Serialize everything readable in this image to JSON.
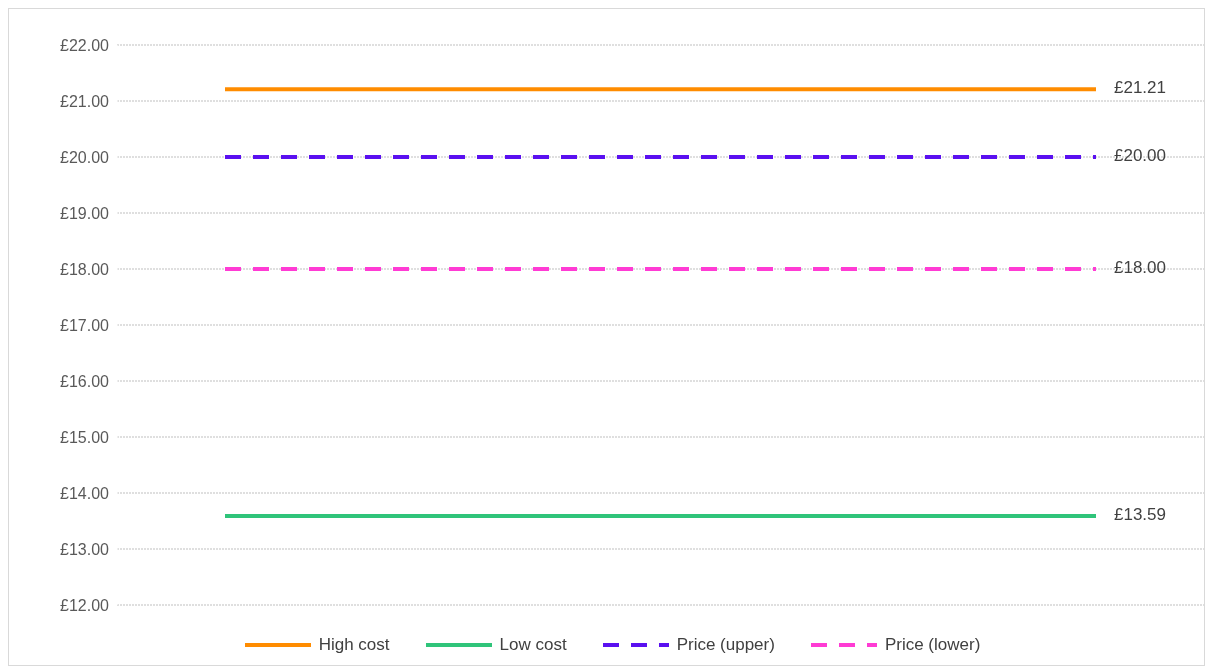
{
  "chart_data": {
    "type": "line",
    "categories": [
      null,
      null,
      null,
      null,
      null
    ],
    "series": [
      {
        "name": "High cost",
        "color": "#ff8c00",
        "values": [
          21.21,
          21.21,
          21.21,
          21.21,
          21.21
        ],
        "value_labels": [
          null,
          null,
          null,
          null,
          "£21.21"
        ],
        "line_style": "solid"
      },
      {
        "name": "Low cost",
        "color": "#2fc47a",
        "values": [
          13.59,
          13.59,
          13.59,
          13.59,
          13.59
        ],
        "value_labels": [
          null,
          null,
          null,
          null,
          "£13.59"
        ],
        "line_style": "solid"
      },
      {
        "name": "Price (upper)",
        "color": "#5a10f0",
        "values": [
          20,
          20,
          20,
          20,
          20
        ],
        "value_labels": [
          null,
          null,
          null,
          null,
          "£20.00"
        ],
        "line_style": "dashed"
      },
      {
        "name": "Price (lower)",
        "color": "#ff3bd4",
        "values": [
          18,
          18,
          18,
          18,
          18
        ],
        "value_labels": [
          null,
          null,
          null,
          null,
          "£18.00"
        ],
        "line_style": "dashed"
      }
    ],
    "ylim": [
      12,
      22
    ],
    "yticks": [
      {
        "value": 12,
        "label": "£12.00"
      },
      {
        "value": 13,
        "label": "£13.00"
      },
      {
        "value": 14,
        "label": "£14.00"
      },
      {
        "value": 15,
        "label": "£15.00"
      },
      {
        "value": 16,
        "label": "£16.00"
      },
      {
        "value": 17,
        "label": "£17.00"
      },
      {
        "value": 18,
        "label": "£18.00"
      },
      {
        "value": 19,
        "label": "£19.00"
      },
      {
        "value": 20,
        "label": "£20.00"
      },
      {
        "value": 21,
        "label": "£21.00"
      },
      {
        "value": 22,
        "label": "£22.00"
      }
    ],
    "grid": "y",
    "legend": "bottom",
    "marker": "none"
  }
}
